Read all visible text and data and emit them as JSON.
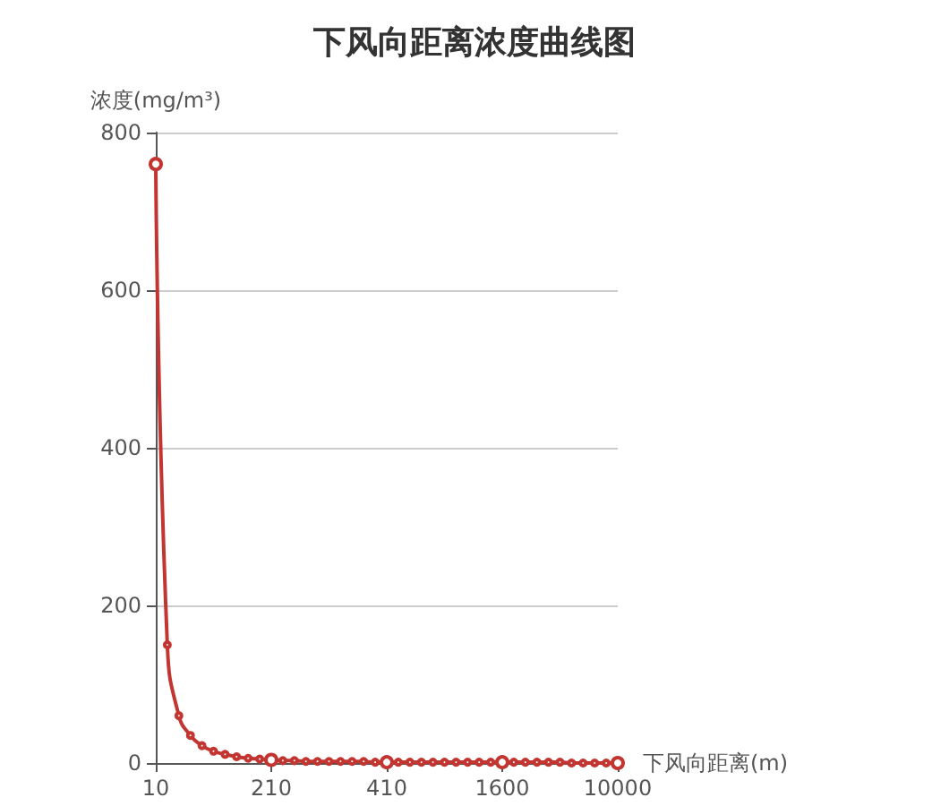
{
  "chart_data": {
    "type": "line",
    "title": "下风向距离浓度曲线图",
    "xlabel": "下风向距离(m)",
    "ylabel": "浓度(mg/m³)",
    "categories": [
      "10",
      null,
      null,
      null,
      null,
      null,
      null,
      null,
      null,
      null,
      "210",
      null,
      null,
      null,
      null,
      null,
      null,
      null,
      null,
      null,
      "410",
      null,
      null,
      null,
      null,
      null,
      null,
      null,
      null,
      null,
      "1600",
      null,
      null,
      null,
      null,
      null,
      null,
      null,
      null,
      null,
      "10000"
    ],
    "series": [
      {
        "color": "#c23531",
        "values": [
          760,
          150,
          60,
          35,
          22,
          15,
          11,
          8,
          6,
          5,
          4,
          3,
          3,
          2,
          2,
          2,
          2,
          2,
          2,
          1,
          1,
          1,
          1,
          1,
          1,
          1,
          1,
          1,
          1,
          1,
          1,
          1,
          1,
          1,
          1,
          1,
          0,
          0,
          0,
          0,
          0
        ]
      }
    ],
    "ylim": [
      0,
      800
    ],
    "yticks": [
      0,
      200,
      400,
      600,
      800
    ],
    "grid": "y",
    "marker": "circle",
    "line_style": "solid"
  }
}
